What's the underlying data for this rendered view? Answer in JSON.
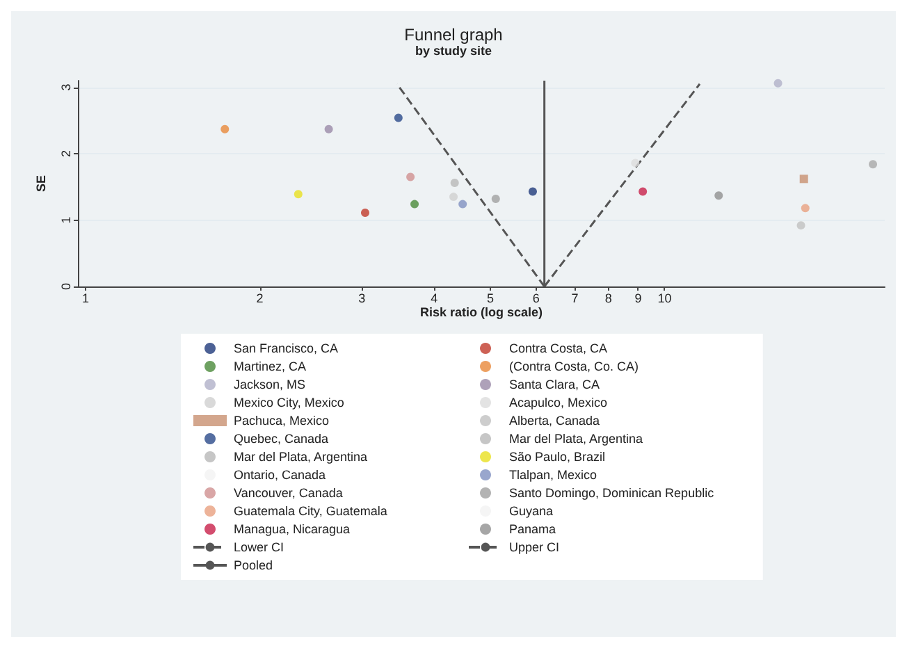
{
  "chart_data": {
    "type": "scatter",
    "title": "Funnel graph",
    "subtitle": "by study site",
    "xlabel": "Risk ratio (log scale)",
    "ylabel": "SE",
    "log": "x",
    "xlim": [
      0.97,
      24
    ],
    "xticks": [
      1,
      2,
      3,
      4,
      5,
      6,
      7,
      8,
      9,
      10
    ],
    "ylim": [
      0,
      3.1
    ],
    "yticks": [
      0,
      1,
      2,
      3
    ],
    "grid": "y",
    "legend": "bottom",
    "marker": "circle",
    "series": [
      {
        "name": "San Francisco, CA",
        "color": "#1f3a7a",
        "x": [
          5.92
        ],
        "values": [
          1.43
        ]
      },
      {
        "name": "Contra Costa, CA",
        "color": "#c0392b",
        "x": [
          3.04
        ],
        "values": [
          1.11
        ]
      },
      {
        "name": "Martinez, CA",
        "color": "#4a8a3a",
        "x": [
          3.7
        ],
        "values": [
          1.24
        ]
      },
      {
        "name": "(Contra Costa, Co. CA)",
        "color": "#e8883a",
        "x": [
          1.74
        ],
        "values": [
          2.37
        ]
      },
      {
        "name": "Jackson, MS",
        "color": "#b0b0c8",
        "x": [
          15.7
        ],
        "values": [
          3.06
        ]
      },
      {
        "name": "Santa Clara, CA",
        "color": "#9a8aa8",
        "x": [
          2.63
        ],
        "values": [
          2.37
        ]
      },
      {
        "name": "Mexico City, Mexico",
        "color": "#cfcfcf",
        "x": [
          4.32
        ],
        "values": [
          1.35
        ]
      },
      {
        "name": "Acapulco, Mexico",
        "color": "#dcdcdc",
        "x": [
          8.9
        ],
        "values": [
          1.86
        ]
      },
      {
        "name": "Pachuca, Mexico",
        "color": "#c89070",
        "marker": "square",
        "x": [
          17.4
        ],
        "values": [
          1.62
        ]
      },
      {
        "name": "Alberta, Canada",
        "color": "#c0c0c0",
        "x": [
          17.2
        ],
        "values": [
          0.92
        ]
      },
      {
        "name": "Quebec, Canada",
        "color": "#2a4a8a",
        "x": [
          3.47
        ],
        "values": [
          2.54
        ]
      },
      {
        "name": "Mar del Plata, Argentina",
        "color": "#b8b8b8",
        "x": [
          4.34
        ],
        "values": [
          1.56
        ]
      },
      {
        "name": "Mar del Plata, Argentina",
        "color": "#a8a8a8",
        "x": [
          22.9
        ],
        "values": [
          1.84
        ]
      },
      {
        "name": "São Paulo, Brazil",
        "color": "#e8e020",
        "x": [
          2.33
        ],
        "values": [
          1.39
        ]
      },
      {
        "name": "Ontario, Canada",
        "color": "#f2f2f2"
      },
      {
        "name": "Tlalpan, Mexico",
        "color": "#8090c0",
        "x": [
          4.48
        ],
        "values": [
          1.24
        ]
      },
      {
        "name": "Vancouver, Canada",
        "color": "#d09090",
        "x": [
          3.64
        ],
        "values": [
          1.65
        ]
      },
      {
        "name": "Santo Domingo, Dominican Republic",
        "color": "#a0a0a0",
        "x": [
          5.11
        ],
        "values": [
          1.32
        ]
      },
      {
        "name": "Guatemala City, Guatemala",
        "color": "#e8a080",
        "x": [
          17.5
        ],
        "values": [
          1.18
        ]
      },
      {
        "name": "Guyana",
        "color": "#f2f2f2"
      },
      {
        "name": "Managua, Nicaragua",
        "color": "#c8204a",
        "x": [
          9.17
        ],
        "values": [
          1.43
        ]
      },
      {
        "name": "Panama",
        "color": "#909090",
        "x": [
          12.4
        ],
        "values": [
          1.37
        ]
      },
      {
        "name": "Lower CI",
        "type": "line",
        "color": "#555555",
        "line_style": "dashed",
        "marker": "none",
        "x": [
          6.2,
          3.45
        ],
        "values": [
          0,
          3.05
        ]
      },
      {
        "name": "Upper CI",
        "type": "line",
        "color": "#555555",
        "line_style": "dashed",
        "marker": "none",
        "x": [
          6.2,
          11.5
        ],
        "values": [
          0,
          3.05
        ]
      },
      {
        "name": "Pooled",
        "type": "line",
        "color": "#555555",
        "line_style": "solid",
        "marker": "none",
        "x": [
          6.2,
          6.2
        ],
        "values": [
          0,
          3.1
        ]
      }
    ]
  }
}
